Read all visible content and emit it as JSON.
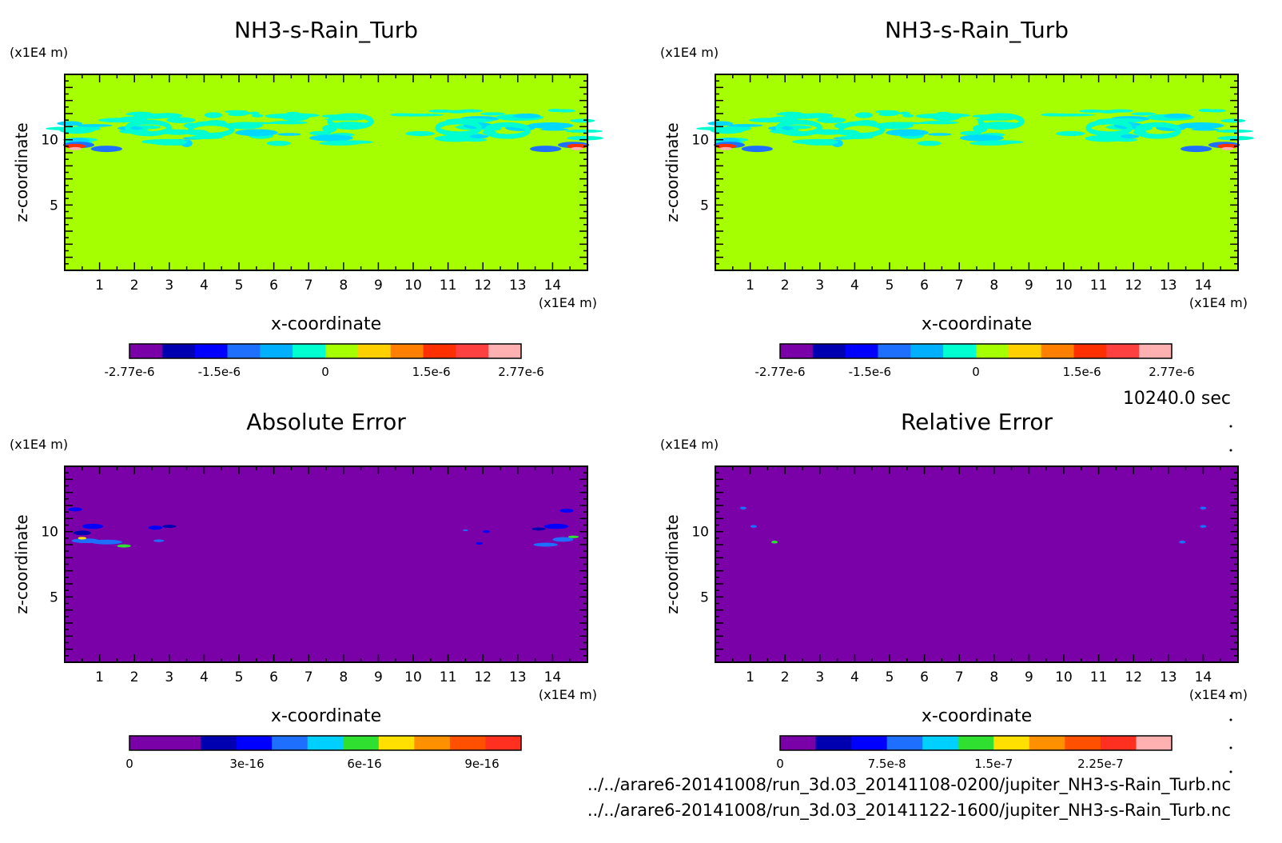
{
  "time_label": "10240.0 sec",
  "files": [
    "../../arare6-20141008/run_3d.03_20141108-0200/jupiter_NH3-s-Rain_Turb.nc",
    "../../arare6-20141008/run_3d.03_20141122-1600/jupiter_NH3-s-Rain_Turb.nc"
  ],
  "chart_data": [
    {
      "type": "heatmap",
      "title": "NH3-s-Rain_Turb",
      "xlabel": "x-coordinate",
      "ylabel": "z-coordinate",
      "x_unit": "(x1E4 m)",
      "y_unit": "(x1E4 m)",
      "xlim": [
        0,
        15
      ],
      "ylim": [
        0,
        15
      ],
      "x_ticks": [
        1,
        2,
        3,
        4,
        5,
        6,
        7,
        8,
        9,
        10,
        11,
        12,
        13,
        14
      ],
      "y_ticks": [
        5,
        10
      ],
      "background_color": "#a6ff00",
      "colorbar": {
        "colors": [
          "#7a00a8",
          "#0000b0",
          "#0000ff",
          "#1f6fff",
          "#00b0ff",
          "#00ffd0",
          "#a6ff00",
          "#ffd000",
          "#ff8000",
          "#ff3000",
          "#ff4040",
          "#ffb0b0"
        ],
        "tick_labels": [
          "-2.77e-6",
          "-1.5e-6",
          "0",
          "1.5e-6",
          "2.77e-6"
        ],
        "tick_values": [
          -2.77e-06,
          -1.5e-06,
          0,
          1.5e-06,
          2.77e-06
        ],
        "range": [
          -2.77e-06,
          2.77e-06
        ]
      },
      "feature": "turbulent cloud layer between z=9.5 and z=12"
    },
    {
      "type": "heatmap",
      "title": "NH3-s-Rain_Turb",
      "xlabel": "x-coordinate",
      "ylabel": "z-coordinate",
      "x_unit": "(x1E4 m)",
      "y_unit": "(x1E4 m)",
      "xlim": [
        0,
        15
      ],
      "ylim": [
        0,
        15
      ],
      "x_ticks": [
        1,
        2,
        3,
        4,
        5,
        6,
        7,
        8,
        9,
        10,
        11,
        12,
        13,
        14
      ],
      "y_ticks": [
        5,
        10
      ],
      "background_color": "#a6ff00",
      "colorbar": {
        "colors": [
          "#7a00a8",
          "#0000b0",
          "#0000ff",
          "#1f6fff",
          "#00b0ff",
          "#00ffd0",
          "#a6ff00",
          "#ffd000",
          "#ff8000",
          "#ff3000",
          "#ff4040",
          "#ffb0b0"
        ],
        "tick_labels": [
          "-2.77e-6",
          "-1.5e-6",
          "0",
          "1.5e-6",
          "2.77e-6"
        ],
        "tick_values": [
          -2.77e-06,
          -1.5e-06,
          0,
          1.5e-06,
          2.77e-06
        ],
        "range": [
          -2.77e-06,
          2.77e-06
        ]
      },
      "feature": "turbulent cloud layer between z=9.5 and z=12"
    },
    {
      "type": "heatmap",
      "title": "Absolute Error",
      "xlabel": "x-coordinate",
      "ylabel": "z-coordinate",
      "x_unit": "(x1E4 m)",
      "y_unit": "(x1E4 m)",
      "xlim": [
        0,
        15
      ],
      "ylim": [
        0,
        15
      ],
      "x_ticks": [
        1,
        2,
        3,
        4,
        5,
        6,
        7,
        8,
        9,
        10,
        11,
        12,
        13,
        14
      ],
      "y_ticks": [
        5,
        10
      ],
      "background_color": "#7a00a8",
      "colorbar": {
        "colors": [
          "#7a00a8",
          "#7a00a8",
          "#0000b0",
          "#0000ff",
          "#1f6fff",
          "#00d0ff",
          "#30e030",
          "#ffe000",
          "#ff9000",
          "#ff5000",
          "#ff3020"
        ],
        "tick_labels": [
          "0",
          "3e-16",
          "6e-16",
          "9e-16"
        ],
        "tick_values": [
          0,
          3e-16,
          6e-16,
          9e-16
        ],
        "range": [
          0,
          1e-15
        ]
      },
      "feature": "small error patches near x=0-3 and x=12-15, z=9-11"
    },
    {
      "type": "heatmap",
      "title": "Relative Error",
      "xlabel": "x-coordinate",
      "ylabel": "z-coordinate",
      "x_unit": "(x1E4 m)",
      "y_unit": "(x1E4 m)",
      "xlim": [
        0,
        15
      ],
      "ylim": [
        0,
        15
      ],
      "x_ticks": [
        1,
        2,
        3,
        4,
        5,
        6,
        7,
        8,
        9,
        10,
        11,
        12,
        13,
        14
      ],
      "y_ticks": [
        5,
        10
      ],
      "background_color": "#7a00a8",
      "colorbar": {
        "colors": [
          "#7a00a8",
          "#0000b0",
          "#0000ff",
          "#1f6fff",
          "#00d0ff",
          "#30e030",
          "#ffe000",
          "#ff9000",
          "#ff5000",
          "#ff3020",
          "#ffb0b0"
        ],
        "tick_labels": [
          "0",
          "7.5e-8",
          "1.5e-7",
          "2.25e-7"
        ],
        "tick_values": [
          0,
          7.5e-08,
          1.5e-07,
          2.25e-07
        ],
        "range": [
          0,
          2.75e-07
        ]
      },
      "feature": "a few isolated specks near z=9-11"
    }
  ]
}
